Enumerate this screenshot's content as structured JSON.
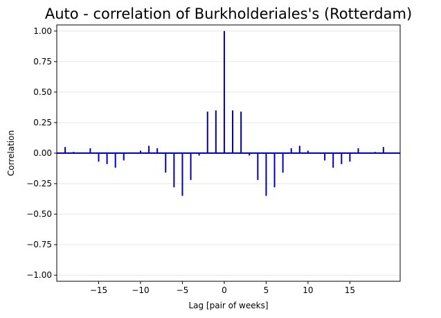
{
  "chart_data": {
    "type": "bar",
    "title": "Auto - correlation of Burkholderiales's (Rotterdam)",
    "xlabel": "Lag [pair of weeks]",
    "ylabel": "Correlation",
    "xlim": [
      -20,
      21
    ],
    "ylim": [
      -1.05,
      1.05
    ],
    "xticks": [
      -15,
      -10,
      -5,
      0,
      5,
      10,
      15
    ],
    "xtick_labels": [
      "−15",
      "−10",
      "−5",
      "0",
      "5",
      "10",
      "15"
    ],
    "yticks": [
      -1.0,
      -0.75,
      -0.5,
      -0.25,
      0.0,
      0.25,
      0.5,
      0.75,
      1.0
    ],
    "ytick_labels": [
      "−1.00",
      "−0.75",
      "−0.50",
      "−0.25",
      "0.00",
      "0.25",
      "0.50",
      "0.75",
      "1.00"
    ],
    "grid": "horizontal",
    "bar_color": "#0000b3",
    "zero_line_color": "#0000cc",
    "x": [
      -19,
      -18,
      -17,
      -16,
      -15,
      -14,
      -13,
      -12,
      -11,
      -10,
      -9,
      -8,
      -7,
      -6,
      -5,
      -4,
      -3,
      -2,
      -1,
      0,
      1,
      2,
      3,
      4,
      5,
      6,
      7,
      8,
      9,
      10,
      11,
      12,
      13,
      14,
      15,
      16,
      17,
      18,
      19
    ],
    "values": [
      0.05,
      0.01,
      0.0,
      0.04,
      -0.07,
      -0.09,
      -0.12,
      -0.06,
      0.0,
      0.02,
      0.06,
      0.04,
      -0.16,
      -0.28,
      -0.35,
      -0.22,
      -0.02,
      0.34,
      0.35,
      1.0,
      0.35,
      0.34,
      -0.02,
      -0.22,
      -0.35,
      -0.28,
      -0.16,
      0.04,
      0.06,
      0.02,
      0.0,
      -0.06,
      -0.12,
      -0.09,
      -0.07,
      0.04,
      0.0,
      0.01,
      0.05
    ]
  }
}
